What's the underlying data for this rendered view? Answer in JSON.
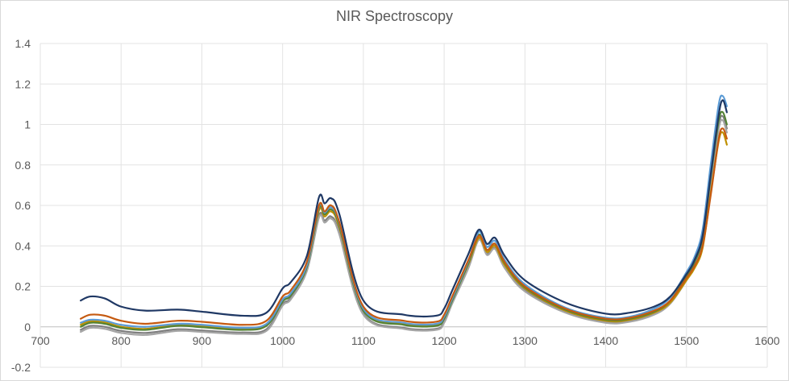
{
  "chart_data": {
    "type": "line",
    "title": "NIR Spectroscopy",
    "xlabel": "",
    "ylabel": "",
    "xlim": [
      700,
      1600
    ],
    "ylim": [
      -0.2,
      1.4
    ],
    "x_ticks": [
      "700",
      "800",
      "900",
      "1000",
      "1100",
      "1200",
      "1300",
      "1400",
      "1500",
      "1600"
    ],
    "y_ticks": [
      "-0.2",
      "0",
      "0.2",
      "0.4",
      "0.6",
      "0.8",
      "1",
      "1.2",
      "1.4"
    ],
    "grid": true,
    "legend": "none",
    "x": [
      750,
      762,
      780,
      800,
      830,
      870,
      900,
      950,
      980,
      1000,
      1010,
      1030,
      1045,
      1052,
      1060,
      1070,
      1100,
      1150,
      1190,
      1200,
      1210,
      1230,
      1243,
      1253,
      1263,
      1275,
      1300,
      1350,
      1400,
      1430,
      1460,
      1480,
      1500,
      1510,
      1520,
      1530,
      1540,
      1545,
      1550
    ],
    "series": [
      {
        "color": "#1f3864",
        "values": [
          0.13,
          0.15,
          0.14,
          0.1,
          0.08,
          0.085,
          0.075,
          0.055,
          0.07,
          0.19,
          0.22,
          0.35,
          0.64,
          0.61,
          0.635,
          0.56,
          0.13,
          0.06,
          0.055,
          0.09,
          0.18,
          0.36,
          0.48,
          0.41,
          0.44,
          0.35,
          0.23,
          0.12,
          0.065,
          0.07,
          0.1,
          0.15,
          0.26,
          0.33,
          0.45,
          0.75,
          1.05,
          1.12,
          1.06
        ]
      },
      {
        "color": "#c55a11",
        "values": [
          0.04,
          0.06,
          0.055,
          0.03,
          0.015,
          0.03,
          0.025,
          0.01,
          0.03,
          0.15,
          0.18,
          0.32,
          0.6,
          0.57,
          0.6,
          0.52,
          0.1,
          0.03,
          0.025,
          0.06,
          0.15,
          0.33,
          0.45,
          0.38,
          0.41,
          0.32,
          0.2,
          0.09,
          0.04,
          0.045,
          0.08,
          0.13,
          0.24,
          0.3,
          0.4,
          0.65,
          0.93,
          0.98,
          0.93
        ]
      },
      {
        "color": "#5b9bd5",
        "values": [
          0.02,
          0.035,
          0.03,
          0.01,
          0.0,
          0.015,
          0.01,
          -0.005,
          0.015,
          0.135,
          0.165,
          0.305,
          0.595,
          0.565,
          0.59,
          0.515,
          0.09,
          0.02,
          0.015,
          0.05,
          0.14,
          0.325,
          0.47,
          0.395,
          0.425,
          0.33,
          0.21,
          0.095,
          0.045,
          0.05,
          0.09,
          0.145,
          0.27,
          0.345,
          0.48,
          0.8,
          1.1,
          1.14,
          1.09
        ]
      },
      {
        "color": "#548235",
        "values": [
          0.0,
          0.02,
          0.015,
          -0.005,
          -0.015,
          0.005,
          -0.002,
          -0.015,
          0.005,
          0.125,
          0.155,
          0.295,
          0.585,
          0.555,
          0.58,
          0.505,
          0.08,
          0.01,
          0.005,
          0.04,
          0.13,
          0.315,
          0.455,
          0.38,
          0.41,
          0.315,
          0.195,
          0.085,
          0.035,
          0.04,
          0.075,
          0.13,
          0.25,
          0.32,
          0.44,
          0.74,
          1.02,
          1.06,
          1.0
        ]
      },
      {
        "color": "#bf9000",
        "values": [
          0.01,
          0.028,
          0.022,
          0.0,
          -0.01,
          0.01,
          0.004,
          -0.01,
          0.01,
          0.13,
          0.16,
          0.3,
          0.575,
          0.545,
          0.57,
          0.495,
          0.085,
          0.015,
          0.01,
          0.045,
          0.135,
          0.31,
          0.44,
          0.37,
          0.4,
          0.305,
          0.19,
          0.08,
          0.03,
          0.035,
          0.07,
          0.12,
          0.23,
          0.29,
          0.39,
          0.66,
          0.92,
          0.96,
          0.9
        ]
      },
      {
        "color": "#a5a5a5",
        "values": [
          -0.025,
          -0.005,
          -0.01,
          -0.03,
          -0.04,
          -0.02,
          -0.025,
          -0.035,
          -0.02,
          0.105,
          0.135,
          0.275,
          0.54,
          0.515,
          0.535,
          0.46,
          0.06,
          -0.01,
          -0.015,
          0.02,
          0.115,
          0.29,
          0.43,
          0.355,
          0.385,
          0.29,
          0.175,
          0.07,
          0.02,
          0.025,
          0.06,
          0.115,
          0.23,
          0.3,
          0.41,
          0.7,
          0.98,
          1.02,
          0.96
        ]
      },
      {
        "color": "#7f7f7f",
        "values": [
          -0.015,
          0.005,
          0.0,
          -0.02,
          -0.03,
          -0.012,
          -0.018,
          -0.028,
          -0.012,
          0.112,
          0.142,
          0.282,
          0.55,
          0.525,
          0.545,
          0.47,
          0.065,
          -0.005,
          -0.01,
          0.025,
          0.12,
          0.295,
          0.435,
          0.36,
          0.39,
          0.295,
          0.18,
          0.075,
          0.025,
          0.03,
          0.065,
          0.12,
          0.24,
          0.31,
          0.43,
          0.72,
          1.0,
          1.04,
          0.98
        ]
      }
    ]
  }
}
